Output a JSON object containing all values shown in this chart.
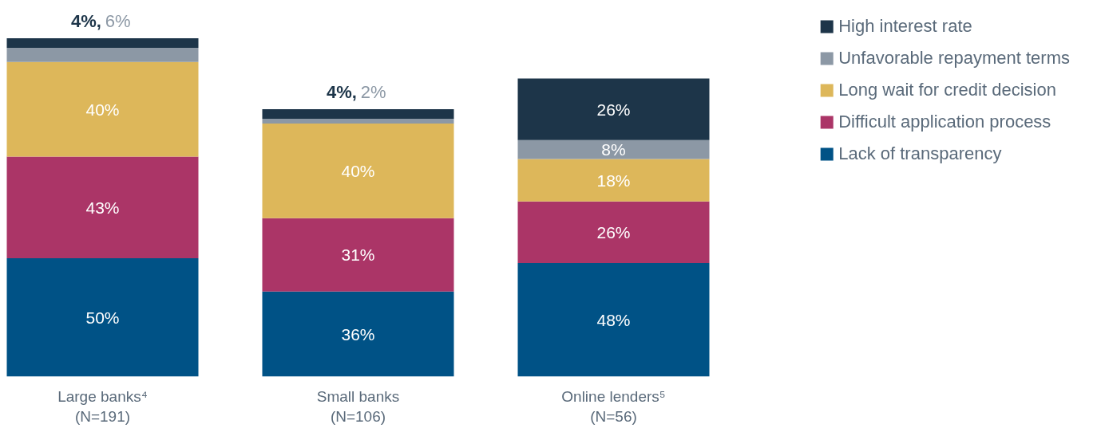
{
  "chart_data": {
    "type": "bar",
    "stacked": true,
    "categories": [
      "Large banks⁴\n(N=191)",
      "Small banks\n(N=106)",
      "Online lenders⁵\n(N=56)"
    ],
    "series": [
      {
        "name": "Lack of transparency",
        "color": "#005286",
        "values": [
          50,
          36,
          48
        ],
        "value_labels": [
          "50%",
          "36%",
          "48%"
        ]
      },
      {
        "name": "Difficult application process",
        "color": "#ab3567",
        "values": [
          43,
          31,
          26
        ],
        "value_labels": [
          "43%",
          "31%",
          "26%"
        ]
      },
      {
        "name": "Long wait for credit decision",
        "color": "#ddb75a",
        "values": [
          40,
          40,
          18
        ],
        "value_labels": [
          "40%",
          "40%",
          "18%"
        ]
      },
      {
        "name": "Unfavorable repayment terms",
        "color": "#8c98a5",
        "values": [
          6,
          2,
          8
        ],
        "value_labels": [
          "6%",
          "2%",
          "8%"
        ]
      },
      {
        "name": "High interest rate",
        "color": "#1d3549",
        "values": [
          4,
          4,
          26
        ],
        "value_labels": [
          "4%,",
          "4%,",
          "26%"
        ]
      }
    ],
    "legend": "top right",
    "grid": false
  }
}
